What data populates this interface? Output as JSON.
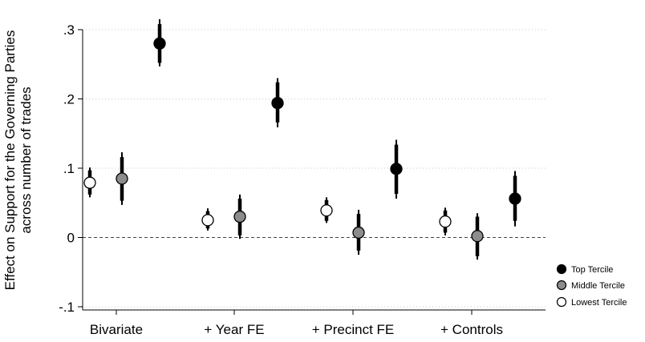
{
  "chart_data": {
    "type": "scatter",
    "categories": [
      "Bivariate",
      "+ Year FE",
      "+ Precinct FE",
      "+ Controls"
    ],
    "ylabel_line1": "Effect on Support for the Governing Parties",
    "ylabel_line2": "across number of trades",
    "ylim": [
      -0.1,
      0.3
    ],
    "yticks": [
      -0.1,
      0,
      0.1,
      0.2,
      0.3
    ],
    "ytick_labels": [
      "-.1",
      "0",
      ".1",
      ".2",
      ".3"
    ],
    "grid": true,
    "reference_line": 0,
    "legend_position": "right",
    "series": [
      {
        "name": "Top Tercile",
        "fill": "#000000",
        "points": [
          {
            "x": "Bivariate",
            "y": 0.28,
            "ci90": [
              0.252,
              0.308
            ],
            "ci95": [
              0.247,
              0.315
            ]
          },
          {
            "x": "+ Year FE",
            "y": 0.194,
            "ci90": [
              0.166,
              0.224
            ],
            "ci95": [
              0.159,
              0.23
            ]
          },
          {
            "x": "+ Precinct FE",
            "y": 0.099,
            "ci90": [
              0.063,
              0.134
            ],
            "ci95": [
              0.056,
              0.141
            ]
          },
          {
            "x": "+ Controls",
            "y": 0.056,
            "ci90": [
              0.024,
              0.089
            ],
            "ci95": [
              0.016,
              0.096
            ]
          }
        ]
      },
      {
        "name": "Middle Tercile",
        "fill": "#8c8c8c",
        "points": [
          {
            "x": "Bivariate",
            "y": 0.085,
            "ci90": [
              0.053,
              0.116
            ],
            "ci95": [
              0.047,
              0.123
            ]
          },
          {
            "x": "+ Year FE",
            "y": 0.03,
            "ci90": [
              0.003,
              0.056
            ],
            "ci95": [
              -0.002,
              0.062
            ]
          },
          {
            "x": "+ Precinct FE",
            "y": 0.007,
            "ci90": [
              -0.019,
              0.034
            ],
            "ci95": [
              -0.025,
              0.04
            ]
          },
          {
            "x": "+ Controls",
            "y": 0.002,
            "ci90": [
              -0.027,
              0.03
            ],
            "ci95": [
              -0.032,
              0.035
            ]
          }
        ]
      },
      {
        "name": "Lowest Tercile",
        "fill": "#ffffff",
        "points": [
          {
            "x": "Bivariate",
            "y": 0.079,
            "ci90": [
              0.062,
              0.097
            ],
            "ci95": [
              0.058,
              0.101
            ]
          },
          {
            "x": "+ Year FE",
            "y": 0.025,
            "ci90": [
              0.013,
              0.038
            ],
            "ci95": [
              0.01,
              0.042
            ]
          },
          {
            "x": "+ Precinct FE",
            "y": 0.039,
            "ci90": [
              0.024,
              0.054
            ],
            "ci95": [
              0.021,
              0.058
            ]
          },
          {
            "x": "+ Controls",
            "y": 0.023,
            "ci90": [
              0.007,
              0.039
            ],
            "ci95": [
              0.003,
              0.043
            ]
          }
        ]
      }
    ]
  }
}
